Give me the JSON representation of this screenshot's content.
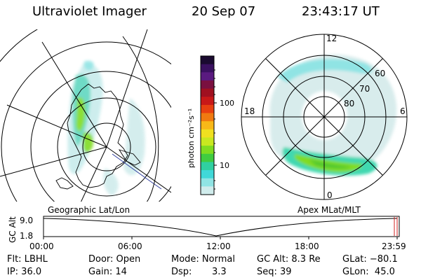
{
  "header": {
    "title": "Ultraviolet Imager",
    "date": "20 Sep 07",
    "time": "23:43:17 UT"
  },
  "left_panel": {
    "caption": "Geographic Lat/Lon"
  },
  "right_panel": {
    "caption": "Apex MLat/MLT",
    "mlt_labels": [
      "12",
      "18",
      "6",
      "0"
    ],
    "lat_labels": [
      "60",
      "70",
      "80"
    ]
  },
  "colorbar": {
    "unit_label": "photon cm⁻²s⁻¹",
    "tick_labels": [
      "100",
      "10"
    ],
    "colors": [
      "#1a0a30",
      "#3a1060",
      "#5a1a80",
      "#7a1040",
      "#a01020",
      "#c81818",
      "#e84010",
      "#f07a10",
      "#f8b818",
      "#f0e020",
      "#c8e820",
      "#80dc20",
      "#40cc40",
      "#30d0a0",
      "#40d8d8",
      "#90e4e4",
      "#d0ecec"
    ]
  },
  "timeline": {
    "ylabel": "GC Alt",
    "yticks": [
      "9.0",
      "1.8"
    ],
    "xticks": [
      "00:00",
      "06:00",
      "12:00",
      "18:00",
      "23:59"
    ]
  },
  "footer": {
    "col1": [
      "Flt: LBHL",
      "IP: 36.0"
    ],
    "col2": [
      "Door: Open",
      "Gain: 14"
    ],
    "col3a": [
      "Mode: Normal",
      "Dsp:"
    ],
    "col3b": [
      "",
      "3.3"
    ],
    "col4": [
      "GC Alt: 8.3 Re",
      "Seq: 39"
    ],
    "col5": [
      "GLat: −80.1",
      "GLon:  45.0"
    ]
  }
}
